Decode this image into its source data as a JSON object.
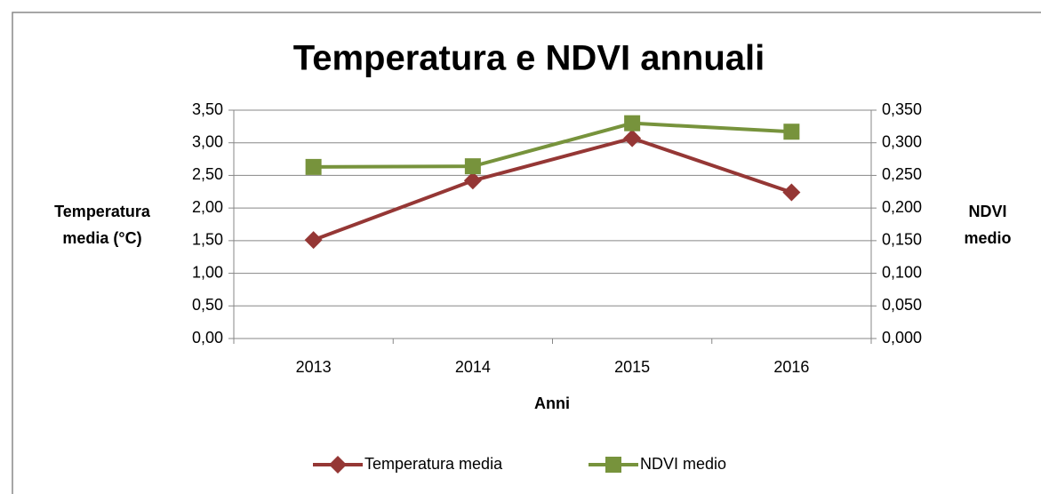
{
  "chart_data": {
    "type": "line",
    "title": "Temperatura e NDVI annuali",
    "xlabel": "Anni",
    "ylabel": "Temperatura media (°C)",
    "y2label": "NDVI medio",
    "categories": [
      "2013",
      "2014",
      "2015",
      "2016"
    ],
    "series": [
      {
        "name": "Temperatura media",
        "color": "#953735",
        "marker": "diamond",
        "values": [
          1.51,
          2.42,
          3.07,
          2.24
        ]
      },
      {
        "name": "NDVI medio",
        "color": "#77933c",
        "marker": "square",
        "axis": "y2",
        "values": [
          0.263,
          0.264,
          0.33,
          0.317
        ]
      }
    ],
    "ylim": [
      0,
      3.5
    ],
    "yticks": [
      {
        "value": 0,
        "label": "0,00"
      },
      {
        "value": 0.5,
        "label": "0,50"
      },
      {
        "value": 1,
        "label": "1,00"
      },
      {
        "value": 1.5,
        "label": "1,50"
      },
      {
        "value": 2,
        "label": "2,00"
      },
      {
        "value": 2.5,
        "label": "2,50"
      },
      {
        "value": 3,
        "label": "3,00"
      },
      {
        "value": 3.5,
        "label": "3,50"
      }
    ],
    "y2lim": [
      0,
      0.35
    ],
    "y2ticks": [
      {
        "value": 0,
        "label": "0,000"
      },
      {
        "value": 0.05,
        "label": "0,050"
      },
      {
        "value": 0.1,
        "label": "0,100"
      },
      {
        "value": 0.15,
        "label": "0,150"
      },
      {
        "value": 0.2,
        "label": "0,200"
      },
      {
        "value": 0.25,
        "label": "0,250"
      },
      {
        "value": 0.3,
        "label": "0,300"
      },
      {
        "value": 0.35,
        "label": "0,350"
      }
    ],
    "grid": true,
    "legend": "bottom"
  }
}
